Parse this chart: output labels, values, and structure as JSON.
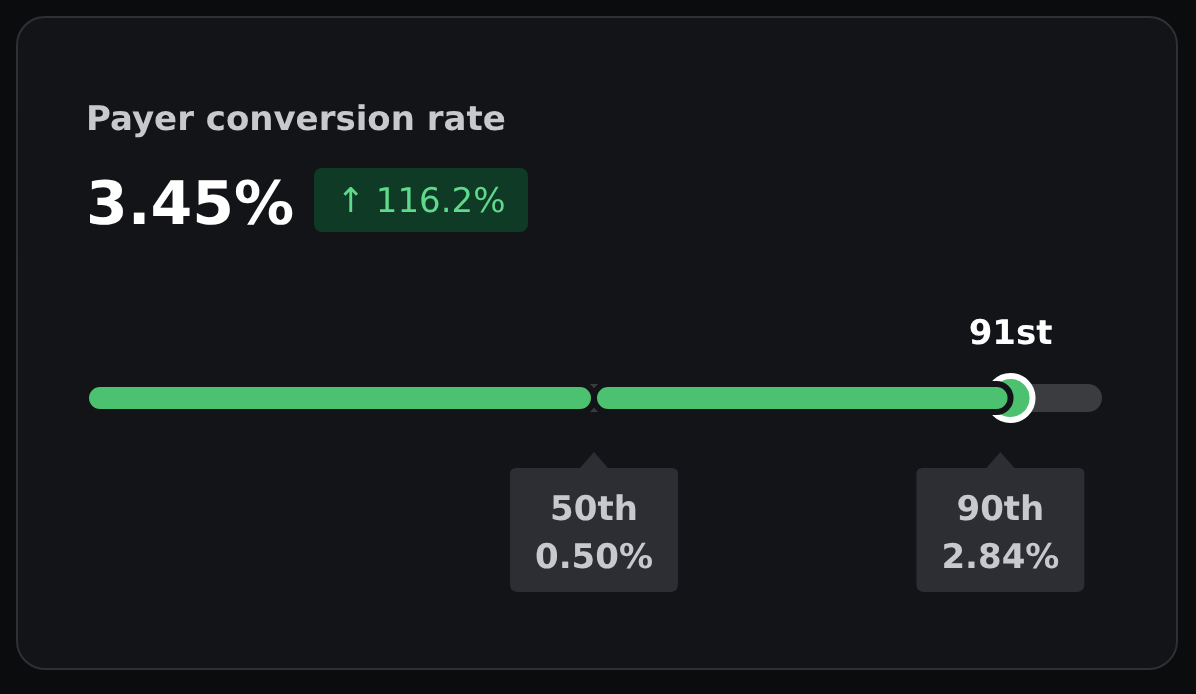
{
  "chart_data": {
    "type": "bar",
    "orientation": "horizontal",
    "stacked": true,
    "title": "Payer conversion rate",
    "subtitle": "3.45%",
    "categories": [
      null
    ],
    "series": [
      {
        "color": "#4cc270",
        "values": [
          50
        ]
      },
      {
        "color": "#4cc270",
        "values": [
          41
        ]
      }
    ],
    "xlim": [
      0,
      100
    ],
    "xticks": [
      {
        "value": 50,
        "label": "50th"
      },
      {
        "value": 90,
        "label": "90th"
      }
    ],
    "annotations": [
      "↑ 116.2%",
      "0.50%",
      "2.84%",
      "91st"
    ]
  }
}
